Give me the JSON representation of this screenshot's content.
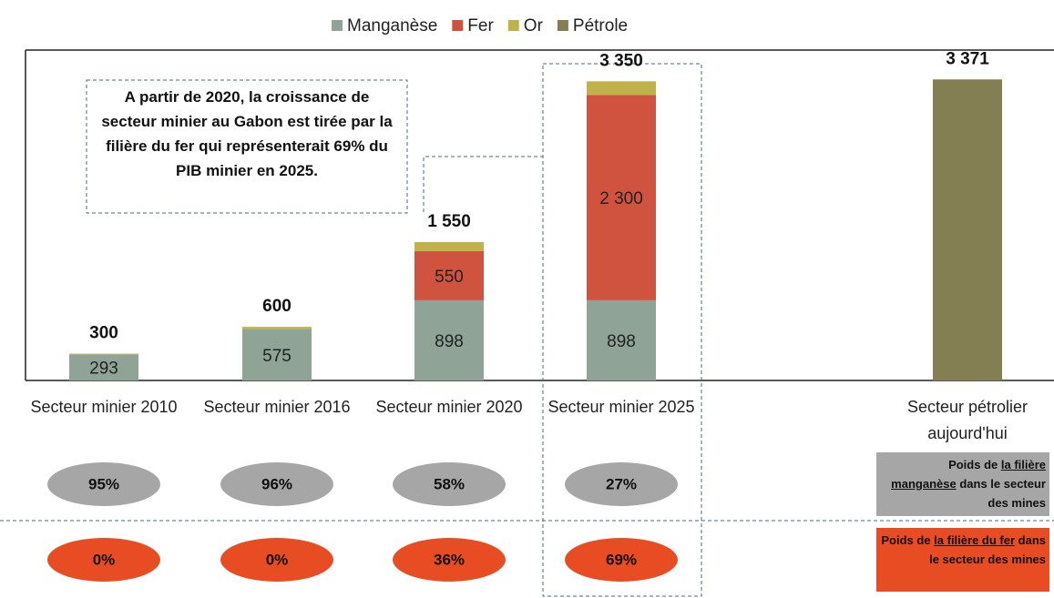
{
  "chart_data": {
    "type": "bar",
    "stacked": true,
    "categories": [
      "Secteur minier 2010",
      "Secteur minier 2016",
      "Secteur minier 2020",
      "Secteur minier 2025",
      "Secteur pétrolier aujourd'hui"
    ],
    "series": [
      {
        "name": "Manganèse",
        "color": "#8fa397",
        "values": [
          293,
          575,
          898,
          898,
          null
        ],
        "value_labels": [
          "293",
          "575",
          "898",
          "898",
          null
        ]
      },
      {
        "name": "Fer",
        "color": "#d0533f",
        "values": [
          0,
          0,
          550,
          2300,
          null
        ],
        "value_labels": [
          null,
          null,
          "550",
          "2 300",
          null
        ]
      },
      {
        "name": "Or",
        "color": "#bfb24b",
        "values": [
          7,
          25,
          102,
          152,
          null
        ]
      },
      {
        "name": "Pétrole",
        "color": "#847f52",
        "values": [
          null,
          null,
          null,
          null,
          3371
        ]
      }
    ],
    "totals": {
      "values": [
        300,
        600,
        1550,
        3350,
        3371
      ],
      "value_labels": [
        "300",
        "600",
        "1 550",
        "3 350",
        "3 371"
      ]
    },
    "ylim": [
      0,
      3700
    ],
    "legend": "top",
    "annotation": "A partir de 2020, la croissance de secteur minier au Gabon est tirée par la filière du fer qui représenterait 69% du PIB minier en 2025.",
    "shares": [
      {
        "label": {
          "prefix": "Poids de ",
          "underlined": "la filière manganèse",
          "suffix": " dans le secteur des mines"
        },
        "color": "#a6a6a6",
        "values": [
          95,
          96,
          58,
          27
        ],
        "value_labels": [
          "95%",
          "96%",
          "58%",
          "27%"
        ]
      },
      {
        "label": {
          "prefix": "Poids de ",
          "underlined": "la filière du fer",
          "suffix": " dans le secteur des mines"
        },
        "color": "#e84c22",
        "values": [
          0,
          0,
          36,
          69
        ],
        "value_labels": [
          "0%",
          "0%",
          "36%",
          "69%"
        ]
      }
    ]
  }
}
